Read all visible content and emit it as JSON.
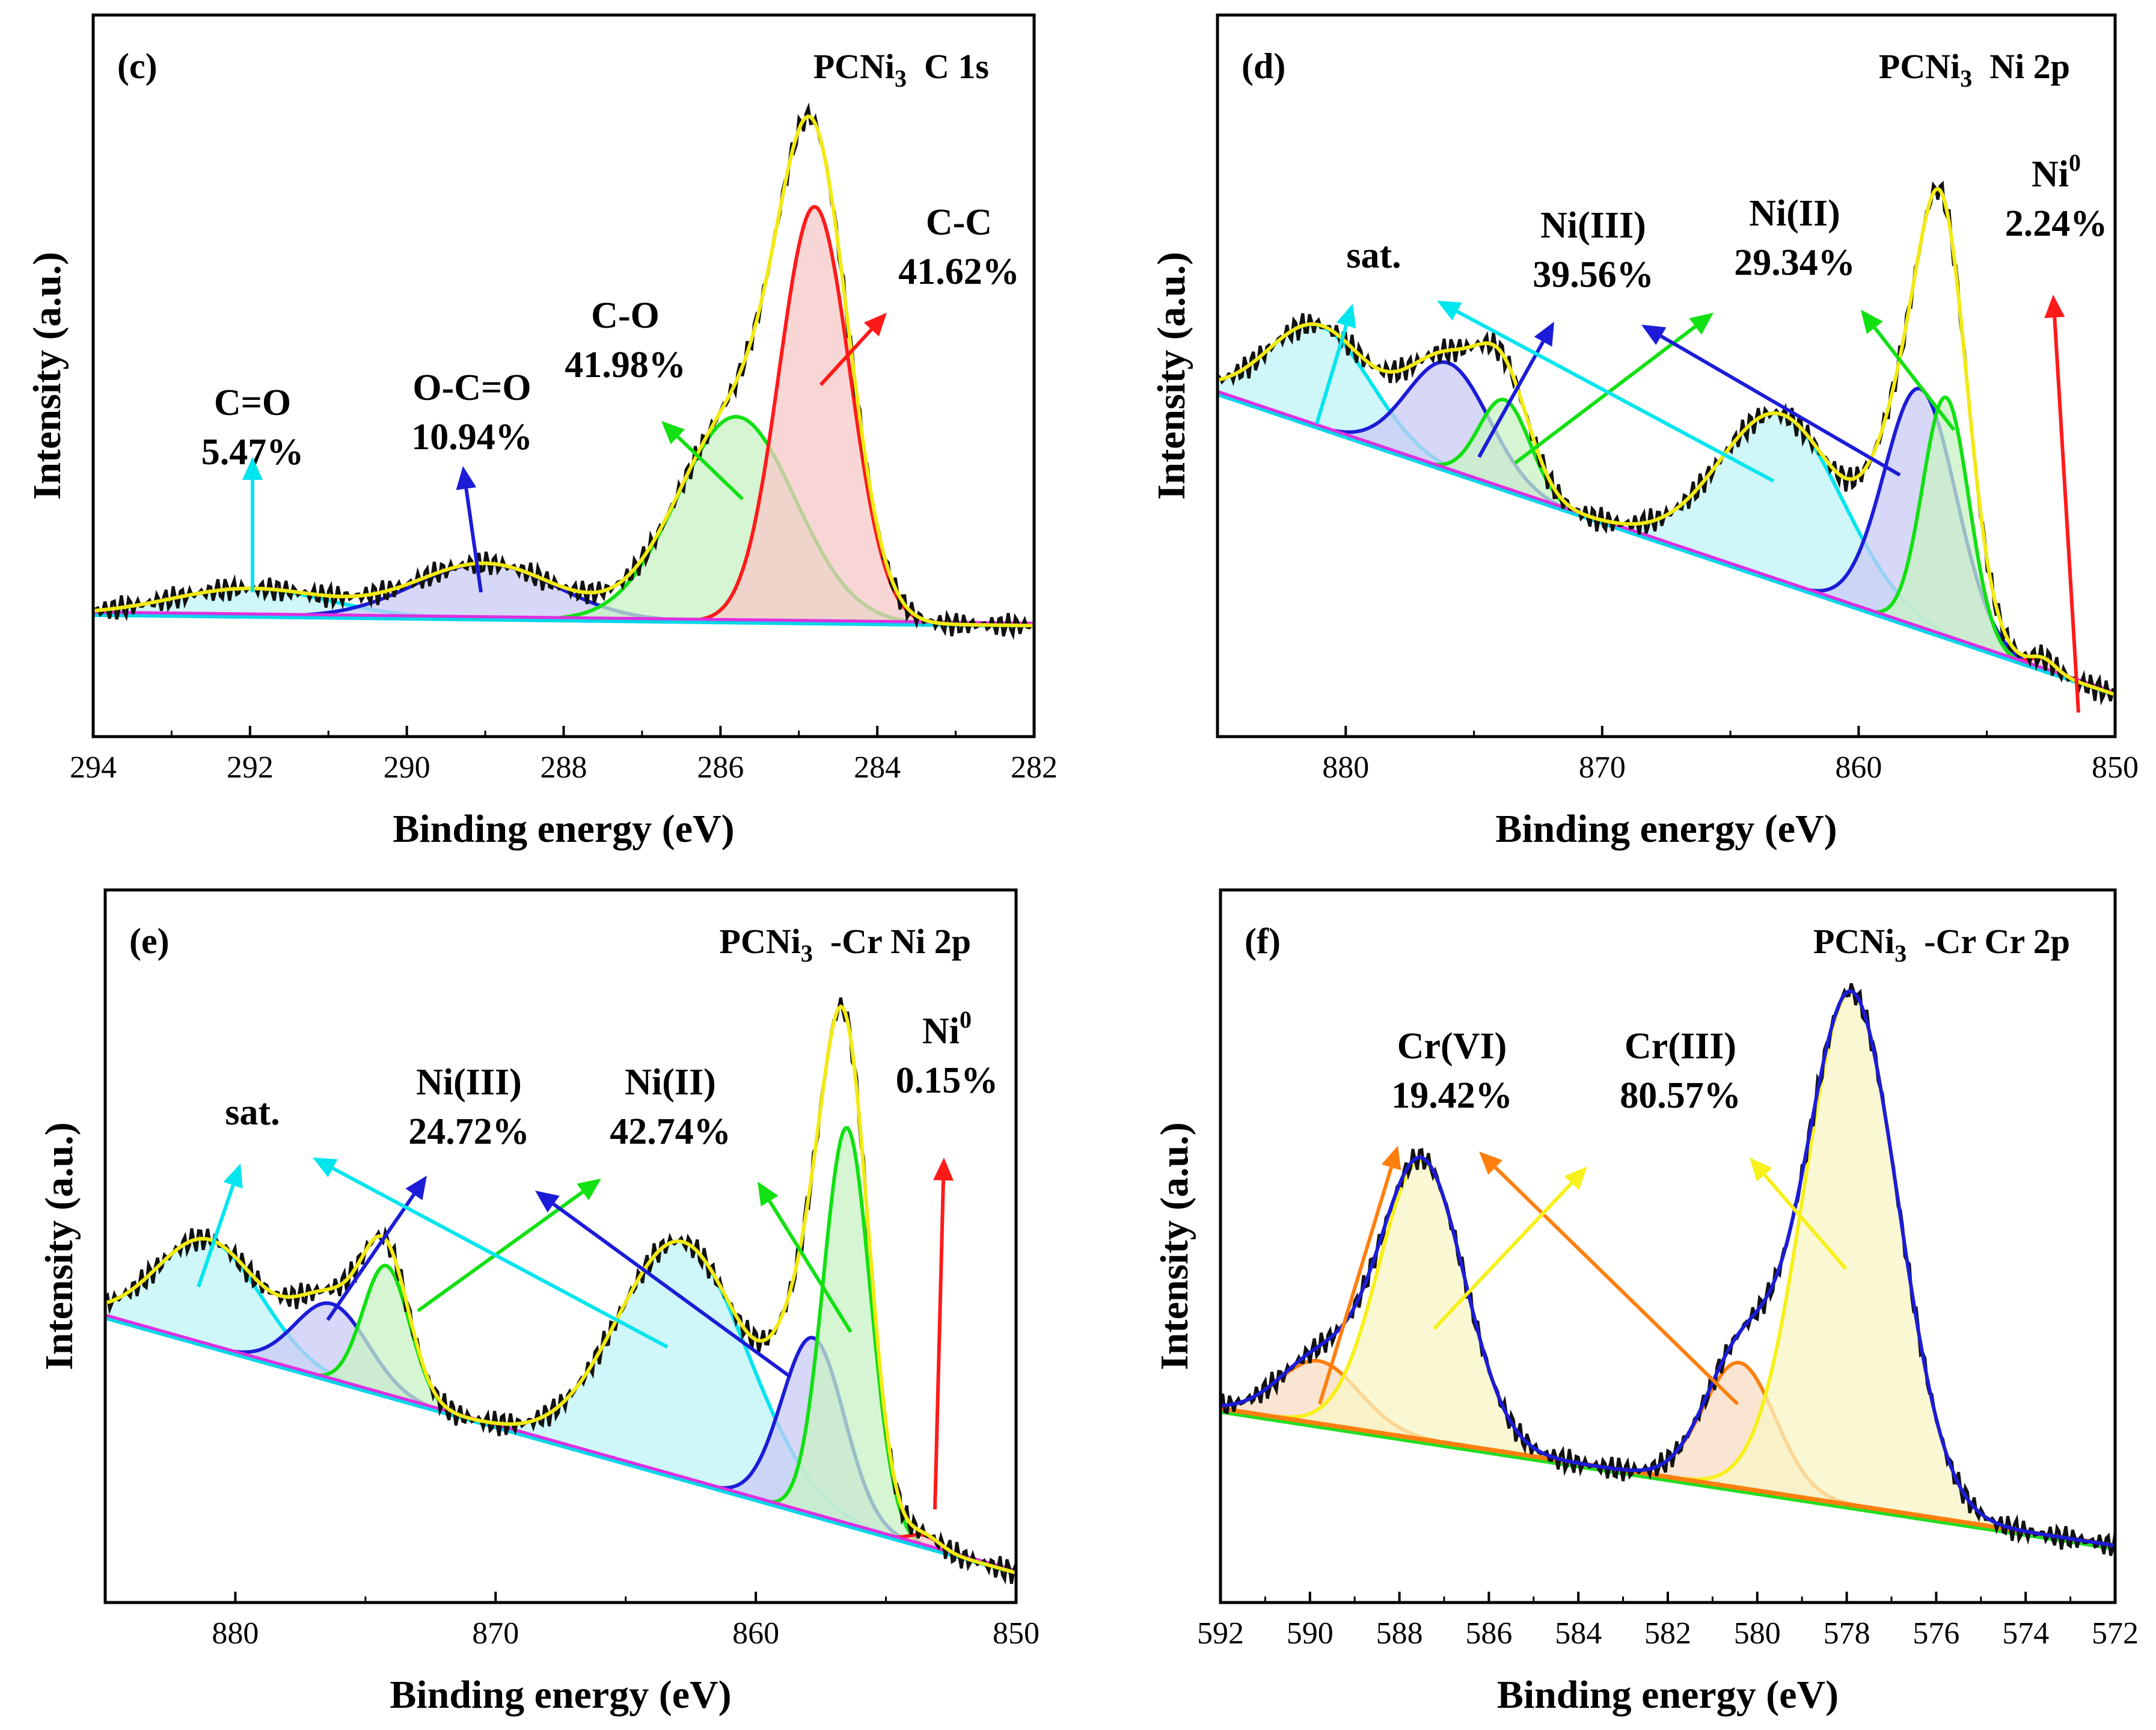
{
  "chart_data": [
    {
      "type": "line",
      "panel": "(c)",
      "title": "PCNi",
      "title_sub": "3",
      "title_tail": "C 1s",
      "xlabel": "Binding energy (eV)",
      "ylabel": "Intensity (a.u.)",
      "xlim": [
        294,
        282
      ],
      "ylim": [
        -0.2,
        1.1
      ],
      "x_ticks": [
        294,
        292,
        290,
        288,
        286,
        284,
        282
      ],
      "x_tick_labels": [
        "294",
        "292",
        "290",
        "288",
        "286",
        "284",
        "282"
      ],
      "baseline": [
        0.02,
        0.0
      ],
      "peaks": [
        {
          "name": "C=O",
          "percent": "5.47%",
          "center": 292.0,
          "amp": 0.05,
          "sigma": 1.0,
          "color": "#00e5ee",
          "fill": "#bff3f7"
        },
        {
          "name": "O-C=O",
          "percent": "10.94%",
          "center": 289.0,
          "amp": 0.1,
          "sigma": 0.9,
          "color": "#1c1cd8",
          "fill": "#c9c9f4"
        },
        {
          "name": "C-O",
          "percent": "41.98%",
          "center": 285.8,
          "amp": 0.37,
          "sigma": 0.75,
          "color": "#12e012",
          "fill": "#c8f2c4"
        },
        {
          "name": "C-C",
          "percent": "41.62%",
          "center": 284.8,
          "amp": 0.75,
          "sigma": 0.45,
          "color": "#ff1a1a",
          "fill": "#f6c8c8"
        }
      ],
      "labels": [
        {
          "text": "C=O",
          "sub": "5.47%"
        },
        {
          "text": "O-C=O",
          "sub": "10.94%"
        },
        {
          "text": "C-O",
          "sub": "41.98%"
        },
        {
          "text": "C-C",
          "sub": "41.62%"
        }
      ]
    },
    {
      "type": "line",
      "panel": "(d)",
      "title": "PCNi",
      "title_sub": "3",
      "title_tail": "Ni 2p",
      "xlabel": "Binding energy (eV)",
      "ylabel": "Intensity (a.u.)",
      "xlim": [
        885,
        850
      ],
      "ylim": [
        -0.05,
        1.15
      ],
      "x_ticks": [
        880,
        870,
        860,
        850
      ],
      "x_tick_labels": [
        "880",
        "870",
        "860",
        "850"
      ],
      "baseline": [
        0.52,
        0.02
      ],
      "peaks": [
        {
          "name": "sat.",
          "percent": "",
          "center": 881.0,
          "amp": 0.17,
          "sigma": 2.0,
          "color": "#00e5ee",
          "fill": "#bff3f7"
        },
        {
          "name": "Ni(III)",
          "percent": "39.56%",
          "center": 876.0,
          "amp": 0.18,
          "sigma": 1.6,
          "color": "#1c1cd8",
          "fill": "#c9c9f4"
        },
        {
          "name": "Ni(II)",
          "percent": "29.34%",
          "center": 873.8,
          "amp": 0.15,
          "sigma": 1.0,
          "color": "#12e012",
          "fill": "#c8f2c4"
        },
        {
          "name": "sat.",
          "percent": "",
          "center": 863.0,
          "amp": 0.28,
          "sigma": 2.4,
          "color": "#00e5ee",
          "fill": "#bff3f7"
        },
        {
          "name": "Ni(III)",
          "percent": "39.56%",
          "center": 857.6,
          "amp": 0.4,
          "sigma": 1.4,
          "color": "#1c1cd8",
          "fill": "#c9c9f4"
        },
        {
          "name": "Ni(II)",
          "percent": "29.34%",
          "center": 856.6,
          "amp": 0.4,
          "sigma": 0.9,
          "color": "#12e012",
          "fill": "#c8f2c4"
        },
        {
          "name": "Ni0",
          "percent": "2.24%",
          "center": 852.8,
          "amp": 0.02,
          "sigma": 0.5,
          "color": "#ff1a1a",
          "fill": "#f6c8c8"
        }
      ],
      "labels": [
        {
          "text": "sat.",
          "sub": ""
        },
        {
          "text": "Ni(III)",
          "sub": "39.56%"
        },
        {
          "text": "Ni(II)",
          "sub": "29.34%"
        },
        {
          "text": "Ni",
          "sup": "0",
          "sub": "2.24%"
        }
      ]
    },
    {
      "type": "line",
      "panel": "(e)",
      "title": "PCNi",
      "title_sub": "3",
      "title_tail": "-Cr  Ni 2p",
      "xlabel": "Binding energy (eV)",
      "ylabel": "Intensity (a.u.)",
      "xlim": [
        885,
        850
      ],
      "ylim": [
        -0.05,
        1.15
      ],
      "x_ticks": [
        880,
        870,
        860,
        850
      ],
      "x_tick_labels": [
        "880",
        "870",
        "860",
        "850"
      ],
      "baseline": [
        0.43,
        0.0
      ],
      "peaks": [
        {
          "name": "sat.",
          "percent": "",
          "center": 881.0,
          "amp": 0.18,
          "sigma": 2.0,
          "color": "#00e5ee",
          "fill": "#bff3f7"
        },
        {
          "name": "Ni(III)",
          "percent": "24.72%",
          "center": 876.3,
          "amp": 0.13,
          "sigma": 1.4,
          "color": "#1c1cd8",
          "fill": "#c9c9f4"
        },
        {
          "name": "Ni(II)",
          "percent": "42.74%",
          "center": 874.2,
          "amp": 0.22,
          "sigma": 0.9,
          "color": "#12e012",
          "fill": "#c8f2c4"
        },
        {
          "name": "sat.",
          "percent": "",
          "center": 862.8,
          "amp": 0.4,
          "sigma": 2.5,
          "color": "#00e5ee",
          "fill": "#bff3f7"
        },
        {
          "name": "Ni(III)",
          "percent": "24.72%",
          "center": 857.8,
          "amp": 0.3,
          "sigma": 1.2,
          "color": "#1c1cd8",
          "fill": "#c9c9f4"
        },
        {
          "name": "Ni(II)",
          "percent": "42.74%",
          "center": 856.5,
          "amp": 0.67,
          "sigma": 0.9,
          "color": "#12e012",
          "fill": "#c8f2c4"
        },
        {
          "name": "Ni0",
          "percent": "0.15%",
          "center": 853.5,
          "amp": 0.02,
          "sigma": 0.6,
          "color": "#ff1a1a",
          "fill": "#f6c8c8"
        }
      ],
      "labels": [
        {
          "text": "sat.",
          "sub": ""
        },
        {
          "text": "Ni(III)",
          "sub": "24.72%"
        },
        {
          "text": "Ni(II)",
          "sub": "42.74%"
        },
        {
          "text": "Ni",
          "sup": "0",
          "sub": "0.15%"
        }
      ]
    },
    {
      "type": "line",
      "panel": "(f)",
      "title": "PCNi",
      "title_sub": "3",
      "title_tail": "-Cr  Cr 2p",
      "xlabel": "Binding energy (eV)",
      "ylabel": "Intensity (a.u.)",
      "xlim": [
        592,
        572
      ],
      "ylim": [
        -0.1,
        1.15
      ],
      "x_ticks": [
        592,
        590,
        588,
        586,
        584,
        582,
        580,
        578,
        576,
        574,
        572
      ],
      "x_tick_labels": [
        "592",
        "590",
        "588",
        "586",
        "584",
        "582",
        "580",
        "578",
        "576",
        "574",
        "572"
      ],
      "baseline": [
        0.24,
        0.0
      ],
      "peaks": [
        {
          "name": "Cr(VI)",
          "percent": "19.42%",
          "center": 589.8,
          "amp": 0.11,
          "sigma": 0.9,
          "color": "#ff7f0e",
          "fill": "#f8dcc4"
        },
        {
          "name": "Cr(III)",
          "percent": "80.57%",
          "center": 587.5,
          "amp": 0.49,
          "sigma": 0.95,
          "color": "#f7f01a",
          "fill": "#f8f4c4"
        },
        {
          "name": "Cr(VI)",
          "percent": "19.42%",
          "center": 580.4,
          "amp": 0.22,
          "sigma": 0.8,
          "color": "#ff7f0e",
          "fill": "#f8dcc4"
        },
        {
          "name": "Cr(III)",
          "percent": "80.57%",
          "center": 577.9,
          "amp": 0.9,
          "sigma": 1.05,
          "color": "#f7f01a",
          "fill": "#f8f4c4"
        }
      ],
      "labels": [
        {
          "text": "Cr(VI)",
          "sub": "19.42%"
        },
        {
          "text": "Cr(III)",
          "sub": "80.57%"
        }
      ]
    }
  ]
}
